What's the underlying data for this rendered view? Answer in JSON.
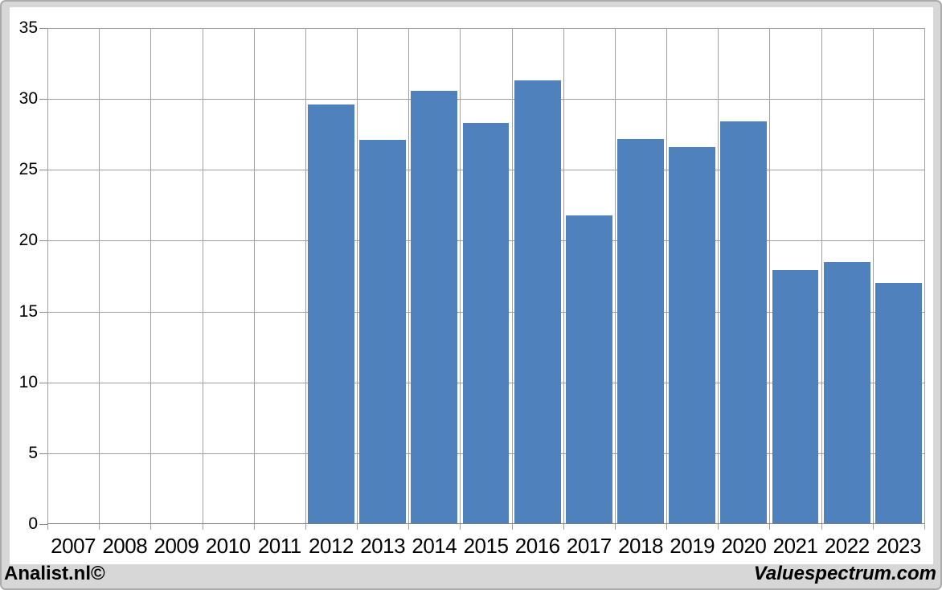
{
  "chart_data": {
    "type": "bar",
    "title": "",
    "categories": [
      "2007",
      "2008",
      "2009",
      "2010",
      "2011",
      "2012",
      "2013",
      "2014",
      "2015",
      "2016",
      "2017",
      "2018",
      "2019",
      "2020",
      "2021",
      "2022",
      "2023"
    ],
    "values": [
      null,
      null,
      null,
      null,
      null,
      29.6,
      27.1,
      30.6,
      28.3,
      31.3,
      21.8,
      27.2,
      26.6,
      28.4,
      17.9,
      18.5,
      17.0
    ],
    "ylim": [
      0,
      35
    ],
    "yticks": [
      0,
      5,
      10,
      15,
      20,
      25,
      30,
      35
    ],
    "grid": true,
    "legend_position": "none",
    "bar_color": "#4f81bd"
  },
  "footer": {
    "left_brand": "Analist.nl©",
    "right_brand": "Valuespectrum.com"
  },
  "colors": {
    "background": "#d7d7d7",
    "panel": "#ffffff",
    "gridline": "#a0a0a0",
    "axis": "#7f7f7f",
    "bar": "#4f81bd",
    "text": "#000000"
  }
}
